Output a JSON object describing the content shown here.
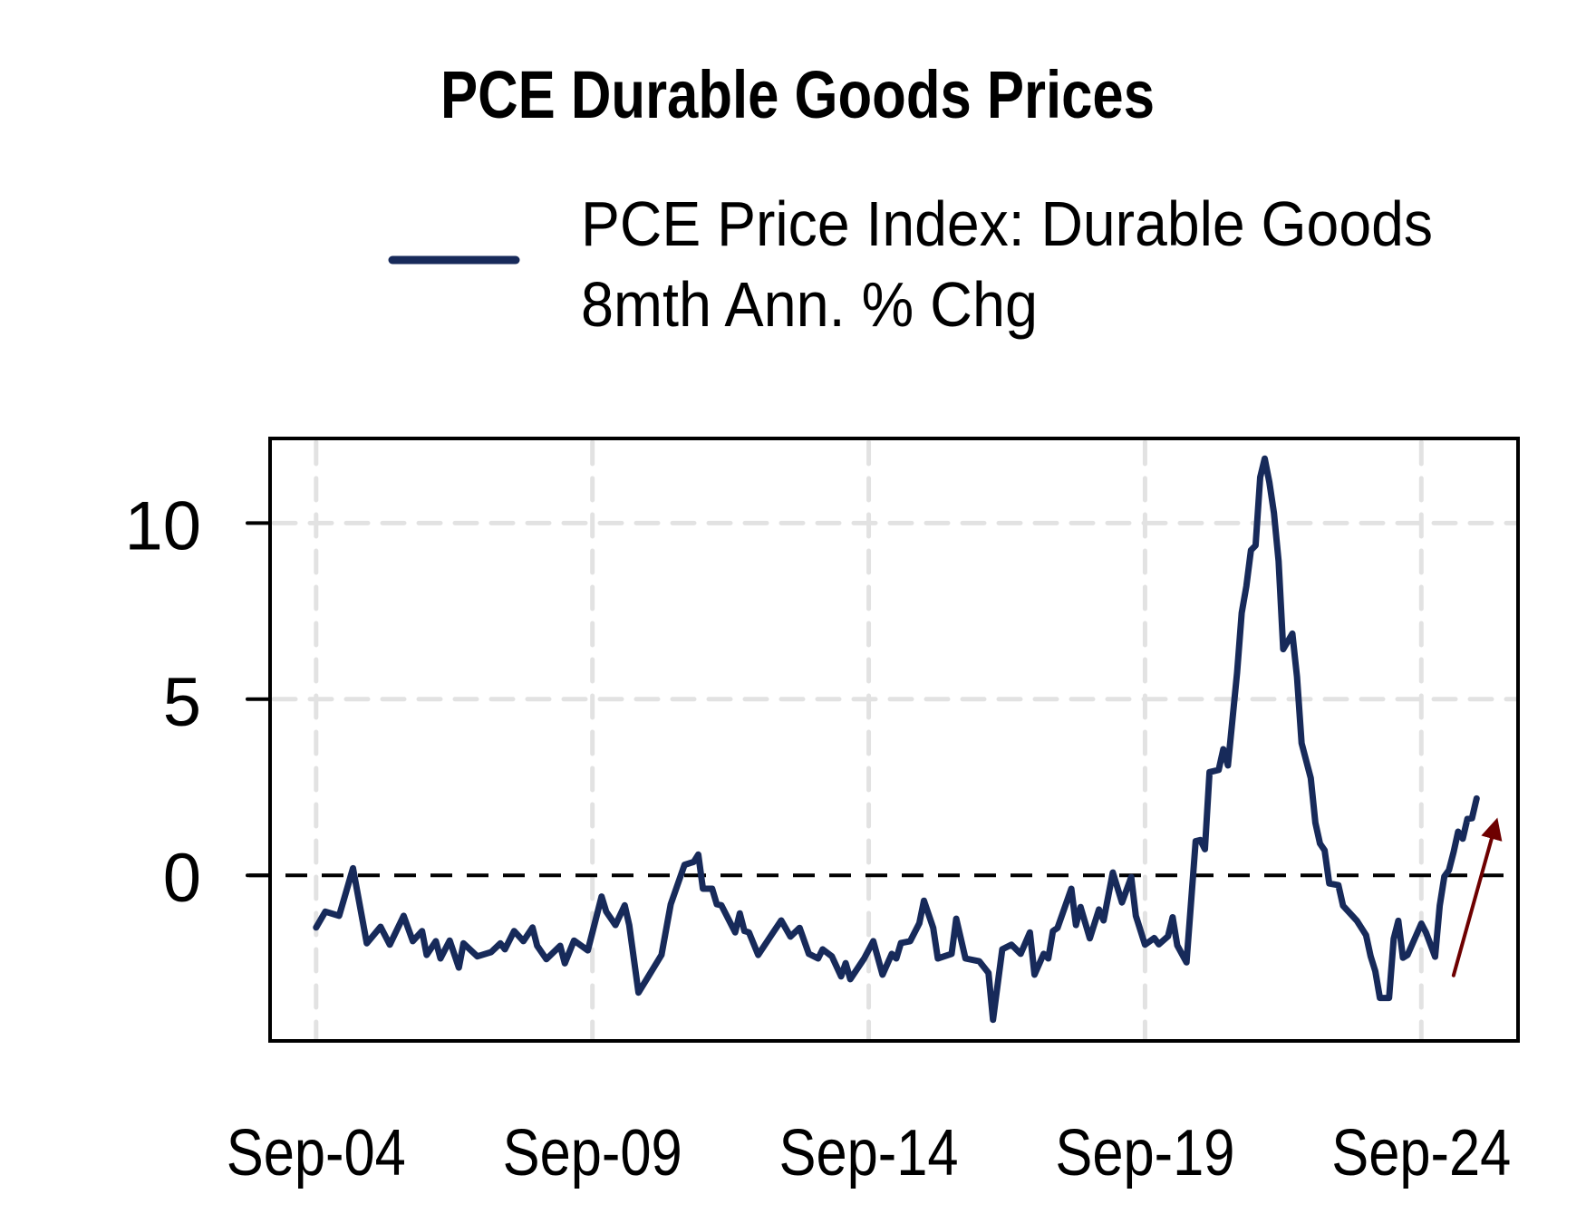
{
  "chart_data": {
    "type": "line",
    "title": "PCE Durable Goods Prices",
    "xlabel": "",
    "ylabel": "",
    "x_range": [
      "2003-11",
      "2026-06"
    ],
    "ylim": [
      -4.7,
      12.4
    ],
    "grid": true,
    "legend_position": "top",
    "x_ticks": [
      {
        "date": "2004-09",
        "label": "Sep-04"
      },
      {
        "date": "2009-09",
        "label": "Sep-09"
      },
      {
        "date": "2014-09",
        "label": "Sep-14"
      },
      {
        "date": "2019-09",
        "label": "Sep-19"
      },
      {
        "date": "2024-09",
        "label": "Sep-24"
      }
    ],
    "y_ticks": [
      {
        "value": 0,
        "label": "0"
      },
      {
        "value": 5,
        "label": "5"
      },
      {
        "value": 10,
        "label": "10"
      }
    ],
    "reference_line": {
      "value": 0,
      "style": "dashed",
      "color": "#000000"
    },
    "series": [
      {
        "name": "PCE Price Index: Durable Goods 8mth Ann. % Chg",
        "legend_lines": [
          "PCE Price Index: Durable Goods",
          "8mth Ann. % Chg"
        ],
        "color": "#172a5a",
        "x": [
          "2004-09",
          "2004-11",
          "2005-02",
          "2005-05",
          "2005-08",
          "2005-11",
          "2006-01",
          "2006-04",
          "2006-06",
          "2006-08",
          "2006-09",
          "2006-11",
          "2006-12",
          "2007-02",
          "2007-04",
          "2007-05",
          "2007-08",
          "2007-11",
          "2008-01",
          "2008-02",
          "2008-04",
          "2008-06",
          "2008-08",
          "2008-09",
          "2008-11",
          "2009-02",
          "2009-03",
          "2009-05",
          "2009-08",
          "2009-11",
          "2009-12",
          "2010-02",
          "2010-04",
          "2010-05",
          "2010-07",
          "2010-09",
          "2010-12",
          "2011-02",
          "2011-05",
          "2011-07",
          "2011-08",
          "2011-09",
          "2011-11",
          "2011-12",
          "2012-01",
          "2012-04",
          "2012-05",
          "2012-06",
          "2012-07",
          "2012-09",
          "2012-12",
          "2013-02",
          "2013-04",
          "2013-06",
          "2013-08",
          "2013-10",
          "2013-11",
          "2014-01",
          "2014-03",
          "2014-04",
          "2014-05",
          "2014-08",
          "2014-10",
          "2014-12",
          "2015-02",
          "2015-03",
          "2015-04",
          "2015-06",
          "2015-08",
          "2015-09",
          "2015-11",
          "2015-12",
          "2016-03",
          "2016-04",
          "2016-06",
          "2016-09",
          "2016-11",
          "2016-12",
          "2017-02",
          "2017-04",
          "2017-06",
          "2017-08",
          "2017-09",
          "2017-11",
          "2017-12",
          "2018-01",
          "2018-02",
          "2018-05",
          "2018-06",
          "2018-07",
          "2018-09",
          "2018-11",
          "2018-12",
          "2019-02",
          "2019-04",
          "2019-06",
          "2019-07",
          "2019-09",
          "2019-11",
          "2019-12",
          "2020-02",
          "2020-03",
          "2020-04",
          "2020-06",
          "2020-08",
          "2020-09",
          "2020-10",
          "2020-11",
          "2021-01",
          "2021-02",
          "2021-03",
          "2021-05",
          "2021-06",
          "2021-07",
          "2021-08",
          "2021-09",
          "2021-10",
          "2021-11",
          "2021-12",
          "2022-01",
          "2022-02",
          "2022-03",
          "2022-05",
          "2022-06",
          "2022-07",
          "2022-09",
          "2022-10",
          "2022-11",
          "2022-12",
          "2023-01",
          "2023-03",
          "2023-04",
          "2023-07",
          "2023-09",
          "2023-10",
          "2023-11",
          "2023-12",
          "2024-02",
          "2024-03",
          "2024-04",
          "2024-05",
          "2024-06",
          "2024-09",
          "2024-10",
          "2024-12",
          "2025-01",
          "2025-02",
          "2025-03",
          "2025-04",
          "2025-05",
          "2025-06",
          "2025-07",
          "2025-08",
          "2025-09"
        ],
        "values": [
          -1.48,
          -1.03,
          -1.15,
          0.2,
          -1.93,
          -1.46,
          -1.97,
          -1.15,
          -1.87,
          -1.58,
          -2.26,
          -1.87,
          -2.36,
          -1.85,
          -2.62,
          -1.93,
          -2.3,
          -2.18,
          -1.93,
          -2.1,
          -1.58,
          -1.87,
          -1.48,
          -2.0,
          -2.38,
          -2.0,
          -2.5,
          -1.85,
          -2.13,
          -0.6,
          -1.03,
          -1.41,
          -0.85,
          -1.41,
          -3.33,
          -2.9,
          -2.26,
          -0.82,
          0.3,
          0.38,
          0.59,
          -0.38,
          -0.38,
          -0.82,
          -0.85,
          -1.62,
          -1.08,
          -1.58,
          -1.62,
          -2.26,
          -1.67,
          -1.28,
          -1.74,
          -1.49,
          -2.23,
          -2.36,
          -2.1,
          -2.3,
          -2.87,
          -2.49,
          -2.95,
          -2.36,
          -1.87,
          -2.82,
          -2.23,
          -2.36,
          -1.92,
          -1.87,
          -1.36,
          -0.72,
          -1.49,
          -2.36,
          -2.23,
          -1.23,
          -2.36,
          -2.44,
          -2.77,
          -4.1,
          -2.1,
          -1.97,
          -2.23,
          -1.62,
          -2.82,
          -2.23,
          -2.36,
          -1.58,
          -1.49,
          -0.38,
          -1.41,
          -0.9,
          -1.79,
          -0.97,
          -1.28,
          0.08,
          -0.77,
          -0.05,
          -1.15,
          -1.97,
          -1.78,
          -1.96,
          -1.73,
          -1.19,
          -1.99,
          -2.47,
          0.97,
          1.0,
          0.74,
          2.93,
          2.99,
          3.58,
          3.12,
          5.75,
          7.45,
          8.2,
          9.23,
          9.36,
          11.3,
          11.83,
          11.16,
          10.28,
          8.92,
          6.42,
          6.86,
          5.64,
          3.75,
          2.76,
          1.49,
          0.9,
          0.71,
          -0.23,
          -0.28,
          -0.86,
          -1.29,
          -1.7,
          -2.3,
          -2.72,
          -3.48,
          -3.48,
          -1.8,
          -1.29,
          -2.34,
          -2.26,
          -1.37,
          -1.62,
          -2.31,
          -0.86,
          -0.03,
          0.15,
          0.66,
          1.24,
          1.04,
          1.6,
          1.62,
          2.18
        ]
      }
    ],
    "annotations": [
      {
        "type": "arrow",
        "color": "#6e0000",
        "from": {
          "date": "2025-04",
          "value": -2.84
        },
        "to": {
          "date": "2026-01",
          "value": 1.39
        }
      }
    ]
  }
}
